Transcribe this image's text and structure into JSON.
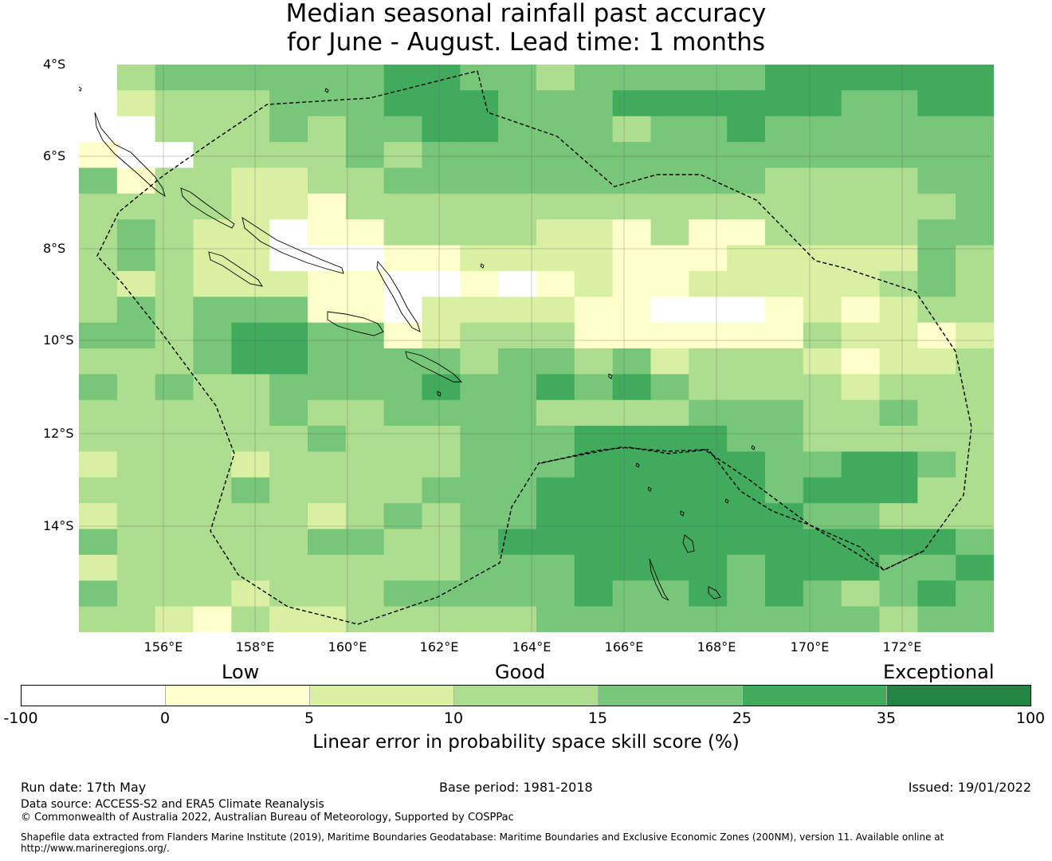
{
  "title": {
    "line1": "Median seasonal rainfall past accuracy",
    "line2": "for June - August. Lead time: 1 months"
  },
  "map": {
    "lat_labels": [
      "4°S",
      "6°S",
      "8°S",
      "10°S",
      "12°S",
      "14°S"
    ],
    "lon_labels": [
      "156°E",
      "158°E",
      "160°E",
      "162°E",
      "164°E",
      "166°E",
      "168°E",
      "170°E",
      "172°E"
    ],
    "grid": {
      "lon_start": 154.2,
      "lat_start": -4.0,
      "cell_deg": 0.833,
      "rows": [
        [
          0,
          3,
          4,
          4,
          4,
          4,
          4,
          4,
          5,
          5,
          4,
          4,
          3,
          4,
          4,
          4,
          4,
          4,
          5,
          5,
          5,
          5,
          5,
          5
        ],
        [
          0,
          2,
          3,
          3,
          3,
          4,
          4,
          4,
          5,
          5,
          5,
          4,
          4,
          4,
          5,
          5,
          5,
          5,
          5,
          5,
          4,
          4,
          5,
          5
        ],
        [
          0,
          0,
          3,
          3,
          3,
          4,
          3,
          4,
          4,
          5,
          5,
          4,
          4,
          4,
          3,
          4,
          4,
          5,
          4,
          4,
          4,
          4,
          4,
          4
        ],
        [
          1,
          0,
          0,
          3,
          3,
          3,
          3,
          4,
          3,
          4,
          4,
          4,
          4,
          4,
          4,
          4,
          4,
          4,
          4,
          4,
          4,
          4,
          4,
          4
        ],
        [
          4,
          1,
          3,
          3,
          2,
          2,
          3,
          3,
          4,
          4,
          4,
          4,
          4,
          4,
          4,
          4,
          4,
          4,
          3,
          3,
          3,
          3,
          4,
          4
        ],
        [
          3,
          3,
          3,
          3,
          2,
          2,
          1,
          3,
          3,
          3,
          3,
          3,
          3,
          3,
          3,
          3,
          3,
          3,
          3,
          3,
          3,
          3,
          3,
          4
        ],
        [
          3,
          4,
          3,
          2,
          2,
          0,
          1,
          1,
          3,
          3,
          3,
          3,
          2,
          2,
          1,
          3,
          1,
          1,
          3,
          3,
          3,
          3,
          4,
          4
        ],
        [
          3,
          4,
          3,
          2,
          2,
          0,
          0,
          0,
          1,
          1,
          2,
          2,
          2,
          2,
          1,
          1,
          1,
          2,
          2,
          2,
          2,
          2,
          4,
          3
        ],
        [
          3,
          2,
          3,
          2,
          2,
          2,
          1,
          1,
          0,
          0,
          1,
          0,
          1,
          2,
          1,
          1,
          2,
          2,
          2,
          2,
          2,
          3,
          4,
          3
        ],
        [
          3,
          4,
          3,
          4,
          4,
          4,
          1,
          1,
          0,
          2,
          2,
          2,
          2,
          1,
          1,
          0,
          0,
          0,
          1,
          2,
          1,
          2,
          3,
          3
        ],
        [
          4,
          4,
          3,
          4,
          5,
          5,
          4,
          4,
          1,
          2,
          3,
          3,
          3,
          1,
          1,
          1,
          1,
          1,
          1,
          3,
          2,
          2,
          1,
          2
        ],
        [
          3,
          3,
          3,
          4,
          5,
          5,
          4,
          4,
          4,
          4,
          3,
          4,
          4,
          3,
          4,
          2,
          3,
          3,
          3,
          2,
          1,
          2,
          2,
          3
        ],
        [
          4,
          3,
          4,
          3,
          3,
          4,
          4,
          4,
          4,
          5,
          4,
          4,
          5,
          4,
          5,
          4,
          3,
          3,
          3,
          3,
          2,
          3,
          3,
          3
        ],
        [
          3,
          3,
          3,
          3,
          3,
          4,
          3,
          3,
          4,
          4,
          4,
          4,
          3,
          3,
          3,
          3,
          4,
          4,
          4,
          3,
          3,
          4,
          3,
          3
        ],
        [
          3,
          3,
          3,
          3,
          3,
          3,
          4,
          3,
          3,
          3,
          4,
          4,
          4,
          5,
          5,
          5,
          5,
          4,
          4,
          3,
          3,
          3,
          3,
          3
        ],
        [
          2,
          3,
          3,
          3,
          2,
          3,
          3,
          3,
          3,
          3,
          4,
          4,
          4,
          5,
          5,
          5,
          5,
          5,
          4,
          4,
          5,
          5,
          4,
          3
        ],
        [
          3,
          3,
          3,
          3,
          4,
          3,
          3,
          3,
          3,
          4,
          4,
          4,
          5,
          5,
          5,
          5,
          5,
          5,
          4,
          5,
          5,
          5,
          3,
          3
        ],
        [
          2,
          3,
          3,
          3,
          3,
          3,
          2,
          3,
          4,
          3,
          4,
          4,
          5,
          5,
          5,
          5,
          5,
          5,
          5,
          4,
          4,
          3,
          3,
          3
        ],
        [
          4,
          3,
          3,
          3,
          3,
          3,
          4,
          4,
          3,
          3,
          4,
          5,
          5,
          5,
          5,
          5,
          5,
          5,
          5,
          5,
          5,
          5,
          5,
          4
        ],
        [
          2,
          3,
          3,
          3,
          3,
          3,
          3,
          3,
          3,
          3,
          4,
          4,
          4,
          5,
          5,
          5,
          5,
          4,
          5,
          5,
          5,
          4,
          4,
          5
        ],
        [
          4,
          3,
          3,
          3,
          2,
          3,
          3,
          3,
          4,
          4,
          4,
          4,
          4,
          5,
          4,
          4,
          5,
          4,
          5,
          4,
          3,
          4,
          5,
          4
        ],
        [
          3,
          3,
          2,
          1,
          3,
          2,
          2,
          3,
          3,
          3,
          3,
          3,
          4,
          4,
          4,
          4,
          4,
          4,
          4,
          4,
          4,
          3,
          4,
          4
        ]
      ]
    }
  },
  "colorbar": {
    "category_labels": [
      "Low",
      "Good",
      "Exceptional"
    ],
    "tick_labels": [
      "-100",
      "0",
      "5",
      "10",
      "15",
      "25",
      "35",
      "100"
    ],
    "colors": [
      "#ffffff",
      "#ffffcc",
      "#d9f0a3",
      "#addd8e",
      "#78c679",
      "#41ab5d",
      "#238443"
    ],
    "title": "Linear error in probability space skill score (%)"
  },
  "footer": {
    "run_date": "Run date: 17th May",
    "base_period": "Base period: 1981-2018",
    "issued": "Issued: 19/01/2022",
    "data_source": "Data source: ACCESS-S2 and ERA5 Climate Reanalysis",
    "copyright": "© Commonwealth of Australia 2022, Australian Bureau of Meteorology, Supported by COSPPac",
    "shapefile_line1": "Shapefile data extracted from Flanders Marine Institute (2019), Maritime Boundaries Geodatabase: Maritime Boundaries and Exclusive Economic Zones (200NM), version 11. Available online at",
    "shapefile_line2": "http://www.marineregions.org/."
  }
}
